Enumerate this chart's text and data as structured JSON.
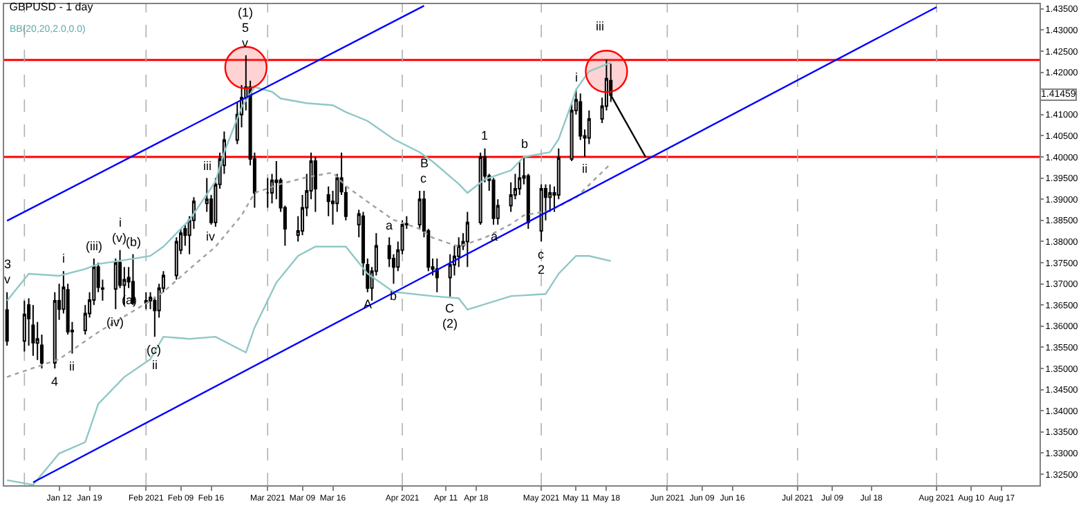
{
  "chart_data": {
    "type": "candlestick",
    "title": "GBPUSD - 1 day",
    "subtitle": "BB(20,20,2.0,0.0)",
    "x": [
      "2020-12-31",
      "2021-01-04",
      "2021-01-05",
      "2021-01-06",
      "2021-01-07",
      "2021-01-08",
      "2021-01-11",
      "2021-01-12",
      "2021-01-13",
      "2021-01-14",
      "2021-01-15",
      "2021-01-18",
      "2021-01-19",
      "2021-01-20",
      "2021-01-21",
      "2021-01-22",
      "2021-01-25",
      "2021-01-26",
      "2021-01-27",
      "2021-01-28",
      "2021-01-29",
      "2021-02-01",
      "2021-02-02",
      "2021-02-03",
      "2021-02-04",
      "2021-02-05",
      "2021-02-08",
      "2021-02-09",
      "2021-02-10",
      "2021-02-11",
      "2021-02-12",
      "2021-02-15",
      "2021-02-16",
      "2021-02-17",
      "2021-02-18",
      "2021-02-19",
      "2021-02-22",
      "2021-02-23",
      "2021-02-24",
      "2021-02-25",
      "2021-02-26",
      "2021-03-01",
      "2021-03-02",
      "2021-03-03",
      "2021-03-04",
      "2021-03-05",
      "2021-03-08",
      "2021-03-09",
      "2021-03-10",
      "2021-03-11",
      "2021-03-12",
      "2021-03-15",
      "2021-03-16",
      "2021-03-17",
      "2021-03-18",
      "2021-03-19",
      "2021-03-22",
      "2021-03-23",
      "2021-03-24",
      "2021-03-25",
      "2021-03-26",
      "2021-03-29",
      "2021-03-30",
      "2021-03-31",
      "2021-04-01",
      "2021-04-02",
      "2021-04-05",
      "2021-04-06",
      "2021-04-07",
      "2021-04-08",
      "2021-04-09",
      "2021-04-12",
      "2021-04-13",
      "2021-04-14",
      "2021-04-15",
      "2021-04-16",
      "2021-04-19",
      "2021-04-20",
      "2021-04-21",
      "2021-04-22",
      "2021-04-23",
      "2021-04-26",
      "2021-04-27",
      "2021-04-28",
      "2021-04-29",
      "2021-04-30",
      "2021-05-03",
      "2021-05-04",
      "2021-05-05",
      "2021-05-06",
      "2021-05-07",
      "2021-05-10",
      "2021-05-11",
      "2021-05-12",
      "2021-05-13",
      "2021-05-14",
      "2021-05-17",
      "2021-05-18",
      "2021-05-19"
    ],
    "ohlc": [
      [
        1.3638,
        1.368,
        1.3554,
        1.3565
      ],
      [
        1.3565,
        1.366,
        1.354,
        1.3628
      ],
      [
        1.365,
        1.3666,
        1.3554,
        1.3618
      ],
      [
        1.3602,
        1.365,
        1.353,
        1.3561
      ],
      [
        1.356,
        1.361,
        1.352,
        1.357
      ],
      [
        1.3555,
        1.358,
        1.35,
        1.3513
      ],
      [
        1.3513,
        1.368,
        1.35,
        1.366
      ],
      [
        1.366,
        1.37,
        1.3615,
        1.364
      ],
      [
        1.364,
        1.373,
        1.363,
        1.3692
      ],
      [
        1.3686,
        1.37,
        1.358,
        1.3587
      ],
      [
        1.3587,
        1.361,
        1.3535,
        1.359
      ],
      [
        1.359,
        1.365,
        1.358,
        1.363
      ],
      [
        1.363,
        1.368,
        1.362,
        1.3662
      ],
      [
        1.3662,
        1.376,
        1.365,
        1.374
      ],
      [
        1.374,
        1.375,
        1.368,
        1.3692
      ],
      [
        1.369,
        1.371,
        1.366,
        1.3688
      ],
      [
        1.3688,
        1.376,
        1.364,
        1.375
      ],
      [
        1.375,
        1.378,
        1.369,
        1.3697
      ],
      [
        1.3697,
        1.374,
        1.365,
        1.371
      ],
      [
        1.3715,
        1.374,
        1.369,
        1.3705
      ],
      [
        1.3705,
        1.377,
        1.365,
        1.3655
      ],
      [
        1.3655,
        1.368,
        1.364,
        1.366
      ],
      [
        1.366,
        1.368,
        1.364,
        1.3668
      ],
      [
        1.366,
        1.367,
        1.3575,
        1.3637
      ],
      [
        1.3637,
        1.37,
        1.362,
        1.369
      ],
      [
        1.369,
        1.373,
        1.368,
        1.372
      ],
      [
        1.372,
        1.381,
        1.371,
        1.38
      ],
      [
        1.378,
        1.383,
        1.377,
        1.382
      ],
      [
        1.383,
        1.384,
        1.379,
        1.3815
      ],
      [
        1.3815,
        1.386,
        1.377,
        1.385
      ],
      [
        1.385,
        1.3905,
        1.383,
        1.3895
      ],
      [
        1.389,
        1.395,
        1.387,
        1.39
      ],
      [
        1.39,
        1.391,
        1.384,
        1.3845
      ],
      [
        1.3845,
        1.395,
        1.3835,
        1.3935
      ],
      [
        1.3935,
        1.401,
        1.3925,
        1.3995
      ],
      [
        1.398,
        1.406,
        1.396,
        1.404
      ],
      [
        1.404,
        1.413,
        1.403,
        1.41
      ],
      [
        1.41,
        1.417,
        1.407,
        1.414
      ],
      [
        1.414,
        1.424,
        1.411,
        1.4165
      ],
      [
        1.4165,
        1.418,
        1.398,
        1.3995
      ],
      [
        1.3995,
        1.401,
        1.388,
        1.3915
      ],
      [
        1.3915,
        1.395,
        1.388,
        1.3915
      ],
      [
        1.3915,
        1.396,
        1.389,
        1.3945
      ],
      [
        1.3945,
        1.399,
        1.39,
        1.394
      ],
      [
        1.3945,
        1.395,
        1.387,
        1.388
      ],
      [
        1.388,
        1.3885,
        1.379,
        1.383
      ],
      [
        1.3815,
        1.386,
        1.38,
        1.3825
      ],
      [
        1.3825,
        1.391,
        1.3815,
        1.388
      ],
      [
        1.388,
        1.396,
        1.386,
        1.392
      ],
      [
        1.392,
        1.401,
        1.39,
        1.399
      ],
      [
        1.399,
        1.4,
        1.387,
        1.3925
      ],
      [
        1.391,
        1.393,
        1.386,
        1.3895
      ],
      [
        1.3895,
        1.392,
        1.384,
        1.389
      ],
      [
        1.389,
        1.396,
        1.387,
        1.395
      ],
      [
        1.395,
        1.401,
        1.391,
        1.3918
      ],
      [
        1.3915,
        1.393,
        1.385,
        1.386
      ],
      [
        1.384,
        1.3875,
        1.381,
        1.3865
      ],
      [
        1.386,
        1.387,
        1.372,
        1.375
      ],
      [
        1.3745,
        1.376,
        1.368,
        1.369
      ],
      [
        1.369,
        1.374,
        1.366,
        1.373
      ],
      [
        1.373,
        1.382,
        1.372,
        1.379
      ],
      [
        1.379,
        1.381,
        1.374,
        1.376
      ],
      [
        1.376,
        1.377,
        1.37,
        1.374
      ],
      [
        1.374,
        1.38,
        1.373,
        1.378
      ],
      [
        1.378,
        1.385,
        1.377,
        1.384
      ],
      [
        1.384,
        1.386,
        1.383,
        1.3842
      ],
      [
        1.384,
        1.392,
        1.383,
        1.39
      ],
      [
        1.39,
        1.392,
        1.381,
        1.3825
      ],
      [
        1.3825,
        1.383,
        1.373,
        1.374
      ],
      [
        1.374,
        1.376,
        1.372,
        1.3735
      ],
      [
        1.3735,
        1.376,
        1.368,
        1.3715
      ],
      [
        1.3715,
        1.377,
        1.367,
        1.3745
      ],
      [
        1.3745,
        1.379,
        1.372,
        1.3765
      ],
      [
        1.3765,
        1.381,
        1.374,
        1.379
      ],
      [
        1.379,
        1.382,
        1.378,
        1.38
      ],
      [
        1.38,
        1.387,
        1.374,
        1.3845
      ],
      [
        1.3845,
        1.401,
        1.384,
        1.4
      ],
      [
        1.4,
        1.402,
        1.394,
        1.3955
      ],
      [
        1.3955,
        1.396,
        1.392,
        1.3945
      ],
      [
        1.3945,
        1.395,
        1.384,
        1.3855
      ],
      [
        1.3855,
        1.39,
        1.384,
        1.3885
      ],
      [
        1.3885,
        1.394,
        1.387,
        1.391
      ],
      [
        1.391,
        1.396,
        1.39,
        1.3925
      ],
      [
        1.3925,
        1.399,
        1.391,
        1.395
      ],
      [
        1.395,
        1.4,
        1.3935,
        1.3955
      ],
      [
        1.3955,
        1.396,
        1.383,
        1.3845
      ],
      [
        1.3825,
        1.3935,
        1.38,
        1.3925
      ],
      [
        1.3925,
        1.3935,
        1.385,
        1.3905
      ],
      [
        1.3905,
        1.3935,
        1.387,
        1.3915
      ],
      [
        1.3915,
        1.393,
        1.387,
        1.391
      ],
      [
        1.391,
        1.402,
        1.39,
        1.3998
      ],
      [
        1.3995,
        1.4125,
        1.399,
        1.411
      ],
      [
        1.411,
        1.416,
        1.41,
        1.4135
      ],
      [
        1.413,
        1.415,
        1.404,
        1.405
      ],
      [
        1.405,
        1.4065,
        1.4,
        1.4045
      ],
      [
        1.4045,
        1.411,
        1.403,
        1.409
      ],
      [
        1.409,
        1.414,
        1.408,
        1.412
      ],
      [
        1.412,
        1.423,
        1.411,
        1.4185
      ],
      [
        1.418,
        1.422,
        1.413,
        1.4146
      ]
    ],
    "series": [
      {
        "type": "line",
        "color": "#8fc7c7",
        "x": [
          "2020-12-31",
          "2021-01-05",
          "2021-01-12",
          "2021-01-18",
          "2021-01-21",
          "2021-01-27",
          "2021-02-02",
          "2021-02-05",
          "2021-02-11",
          "2021-02-17",
          "2021-02-19",
          "2021-02-23",
          "2021-02-26",
          "2021-03-02",
          "2021-03-04",
          "2021-03-10",
          "2021-03-16",
          "2021-03-19",
          "2021-03-24",
          "2021-03-30",
          "2021-04-05",
          "2021-04-08",
          "2021-04-14",
          "2021-04-16",
          "2021-04-20",
          "2021-04-26",
          "2021-04-29",
          "2021-05-05",
          "2021-05-07",
          "2021-05-10",
          "2021-05-11",
          "2021-05-14",
          "2021-05-19"
        ],
        "values": [
          1.366,
          1.3724,
          1.3719,
          1.3735,
          1.3747,
          1.3756,
          1.3766,
          1.3788,
          1.3851,
          1.3942,
          1.4011,
          1.4117,
          1.4165,
          1.4154,
          1.4138,
          1.4127,
          1.4122,
          1.4106,
          1.4085,
          1.4042,
          1.4011,
          1.3989,
          1.3936,
          1.3915,
          1.3947,
          1.3968,
          1.4,
          1.4011,
          1.4042,
          1.4127,
          1.4159,
          1.4202,
          1.4223
        ]
      },
      {
        "type": "line",
        "color": "#a0a0a0",
        "line_style": "dotted",
        "x": [
          "2020-12-31",
          "2021-01-12",
          "2021-01-21",
          "2021-02-02",
          "2021-02-05",
          "2021-02-11",
          "2021-02-17",
          "2021-02-23",
          "2021-02-26",
          "2021-03-04",
          "2021-03-10",
          "2021-03-16",
          "2021-03-19",
          "2021-03-24",
          "2021-03-30",
          "2021-04-05",
          "2021-04-08",
          "2021-04-14",
          "2021-04-20",
          "2021-04-26",
          "2021-04-29",
          "2021-05-05",
          "2021-05-11",
          "2021-05-19"
        ],
        "values": [
          1.348,
          1.3522,
          1.3586,
          1.366,
          1.3681,
          1.3735,
          1.3788,
          1.3862,
          1.3915,
          1.3936,
          1.3952,
          1.3963,
          1.3931,
          1.3894,
          1.3851,
          1.383,
          1.3809,
          1.3788,
          1.3809,
          1.3841,
          1.3862,
          1.3873,
          1.3904,
          1.3984
        ]
      },
      {
        "type": "line",
        "color": "#8fc7c7",
        "x": [
          "2020-12-31",
          "2021-01-06",
          "2021-01-12",
          "2021-01-18",
          "2021-01-21",
          "2021-01-27",
          "2021-02-02",
          "2021-02-05",
          "2021-02-11",
          "2021-02-17",
          "2021-02-23",
          "2021-02-24",
          "2021-02-26",
          "2021-03-03",
          "2021-03-08",
          "2021-03-12",
          "2021-03-19",
          "2021-03-24",
          "2021-03-30",
          "2021-04-08",
          "2021-04-14",
          "2021-04-16",
          "2021-04-26",
          "2021-05-04",
          "2021-05-07",
          "2021-05-11",
          "2021-05-14",
          "2021-05-19"
        ],
        "values": [
          1.3236,
          1.3225,
          1.3299,
          1.3326,
          1.3416,
          1.348,
          1.3522,
          1.3575,
          1.357,
          1.3575,
          1.3543,
          1.3538,
          1.3597,
          1.3703,
          1.3766,
          1.3788,
          1.3788,
          1.3724,
          1.3681,
          1.3671,
          1.3666,
          1.3639,
          1.3671,
          1.3676,
          1.3724,
          1.3766,
          1.3766,
          1.3754
        ]
      },
      {
        "type": "line",
        "color": "#0000ff",
        "x": [
          "2020-12-31",
          "2021-04-06"
        ],
        "values": [
          1.3849,
          1.4357
        ]
      },
      {
        "type": "line",
        "color": "#0000ff",
        "x": [
          "2021-01-06",
          "2021-08-02"
        ],
        "values": [
          1.3231,
          1.4354
        ]
      },
      {
        "type": "line",
        "color": "#000000",
        "x": [
          "2021-05-19",
          "2021-05-27"
        ],
        "values": [
          1.4146,
          1.4
        ]
      },
      {
        "type": "scatter",
        "color": "#ff0000",
        "marker": "circle",
        "x": [
          "2021-02-24",
          "2021-05-18"
        ],
        "values": [
          1.4211,
          1.4202
        ]
      }
    ],
    "ref_lines": [
      {
        "axis": "y",
        "value": 1.4229,
        "color": "#ff0000"
      },
      {
        "axis": "y",
        "value": 1.4,
        "color": "#ff0000"
      },
      {
        "axis": "x",
        "value": "2021-01-04",
        "color": "#b0b0b0",
        "line_style": "dashed"
      },
      {
        "axis": "x",
        "value": "2021-02-01",
        "color": "#b0b0b0",
        "line_style": "dashed"
      },
      {
        "axis": "x",
        "value": "2021-03-01",
        "color": "#b0b0b0",
        "line_style": "dashed"
      },
      {
        "axis": "x",
        "value": "2021-04-01",
        "color": "#b0b0b0",
        "line_style": "dashed"
      },
      {
        "axis": "x",
        "value": "2021-05-03",
        "color": "#b0b0b0",
        "line_style": "dashed"
      },
      {
        "axis": "x",
        "value": "2021-06-01",
        "color": "#b0b0b0",
        "line_style": "dashed"
      },
      {
        "axis": "x",
        "value": "2021-07-01",
        "color": "#b0b0b0",
        "line_style": "dashed"
      },
      {
        "axis": "x",
        "value": "2021-08-02",
        "color": "#b0b0b0",
        "line_style": "dashed"
      }
    ],
    "annotations": [
      {
        "text": "v",
        "x": "2020-12-31",
        "y": 1.368
      },
      {
        "text": "3",
        "x": "2020-12-31",
        "y": 1.368
      },
      {
        "text": "4",
        "x": "2021-01-11",
        "y": 1.35
      },
      {
        "text": "i",
        "x": "2021-01-13",
        "y": 1.373
      },
      {
        "text": "ii",
        "x": "2021-01-15",
        "y": 1.3535
      },
      {
        "text": "(iii)",
        "x": "2021-01-20",
        "y": 1.376
      },
      {
        "text": "(iv)",
        "x": "2021-01-25",
        "y": 1.364
      },
      {
        "text": "(v)",
        "x": "2021-01-26",
        "y": 1.378
      },
      {
        "text": "i",
        "x": "2021-01-26",
        "y": 1.378
      },
      {
        "text": "(a)",
        "x": "2021-01-28",
        "y": 1.369
      },
      {
        "text": "(b)",
        "x": "2021-01-29",
        "y": 1.377
      },
      {
        "text": "(c)",
        "x": "2021-02-03",
        "y": 1.3575
      },
      {
        "text": "ii",
        "x": "2021-02-03",
        "y": 1.3575
      },
      {
        "text": "iii",
        "x": "2021-02-15",
        "y": 1.395
      },
      {
        "text": "iv",
        "x": "2021-02-16",
        "y": 1.384
      },
      {
        "text": "v",
        "x": "2021-02-24",
        "y": 1.424
      },
      {
        "text": "5",
        "x": "2021-02-24",
        "y": 1.424
      },
      {
        "text": "(1)",
        "x": "2021-02-24",
        "y": 1.424
      },
      {
        "text": "A",
        "x": "2021-03-24",
        "y": 1.368
      },
      {
        "text": "a",
        "x": "2021-03-29",
        "y": 1.381
      },
      {
        "text": "b",
        "x": "2021-03-30",
        "y": 1.37
      },
      {
        "text": "c",
        "x": "2021-04-06",
        "y": 1.392
      },
      {
        "text": "B",
        "x": "2021-04-06",
        "y": 1.392
      },
      {
        "text": "C",
        "x": "2021-04-12",
        "y": 1.367
      },
      {
        "text": "(2)",
        "x": "2021-04-12",
        "y": 1.367
      },
      {
        "text": "1",
        "x": "2021-04-20",
        "y": 1.402
      },
      {
        "text": "a",
        "x": "2021-04-22",
        "y": 1.384
      },
      {
        "text": "b",
        "x": "2021-04-29",
        "y": 1.4
      },
      {
        "text": "c",
        "x": "2021-05-03",
        "y": 1.38
      },
      {
        "text": "2",
        "x": "2021-05-03",
        "y": 1.38
      },
      {
        "text": "i",
        "x": "2021-05-11",
        "y": 1.416
      },
      {
        "text": "ii",
        "x": "2021-05-13",
        "y": 1.4
      },
      "iii",
      {
        "text": "1.41459",
        "y": 1.41459
      }
    ],
    "xlim": [
      "2020-12-30T08:00",
      "2021-08-25T17:00"
    ],
    "xticks": [
      {
        "value": "2021-01-12",
        "label": "Jan 12"
      },
      {
        "value": "2021-01-19",
        "label": "Jan 19"
      },
      {
        "value": "2021-02-01",
        "label": "Feb 2021"
      },
      {
        "value": "2021-02-09",
        "label": "Feb 09"
      },
      {
        "value": "2021-02-16",
        "label": "Feb 16"
      },
      {
        "value": "2021-03-01",
        "label": "Mar 2021"
      },
      {
        "value": "2021-03-09",
        "label": "Mar 09"
      },
      {
        "value": "2021-03-16",
        "label": "Mar 16"
      },
      {
        "value": "2021-04-01",
        "label": "Apr 2021"
      },
      {
        "value": "2021-04-11",
        "label": "Apr 11"
      },
      {
        "value": "2021-04-18",
        "label": "Apr 18"
      },
      {
        "value": "2021-05-03",
        "label": "May 2021"
      },
      {
        "value": "2021-05-11",
        "label": "May 11"
      },
      {
        "value": "2021-05-18",
        "label": "May 18"
      },
      {
        "value": "2021-06-01",
        "label": "Jun 2021"
      },
      {
        "value": "2021-06-09",
        "label": "Jun 09"
      },
      {
        "value": "2021-06-16",
        "label": "Jun 16"
      },
      {
        "value": "2021-07-01",
        "label": "Jul 2021"
      },
      {
        "value": "2021-07-09",
        "label": "Jul 09"
      },
      {
        "value": "2021-07-18",
        "label": "Jul 18"
      },
      {
        "value": "2021-08-02",
        "label": "Aug 2021"
      },
      {
        "value": "2021-08-10",
        "label": "Aug 10"
      },
      {
        "value": "2021-08-17",
        "label": "Aug 17"
      }
    ],
    "ylim": [
      1.3224,
      1.4361
    ],
    "yticks": [
      {
        "value": 1.325,
        "label": "1.32500"
      },
      {
        "value": 1.33,
        "label": "1.33000"
      },
      {
        "value": 1.335,
        "label": "1.33500"
      },
      {
        "value": 1.34,
        "label": "1.34000"
      },
      {
        "value": 1.345,
        "label": "1.34500"
      },
      {
        "value": 1.35,
        "label": "1.35000"
      },
      {
        "value": 1.355,
        "label": "1.35500"
      },
      {
        "value": 1.36,
        "label": "1.36000"
      },
      {
        "value": 1.365,
        "label": "1.36500"
      },
      {
        "value": 1.37,
        "label": "1.37000"
      },
      {
        "value": 1.375,
        "label": "1.37500"
      },
      {
        "value": 1.38,
        "label": "1.38000"
      },
      {
        "value": 1.385,
        "label": "1.38500"
      },
      {
        "value": 1.39,
        "label": "1.39000"
      },
      {
        "value": 1.395,
        "label": "1.39500"
      },
      {
        "value": 1.4,
        "label": "1.40000"
      },
      {
        "value": 1.405,
        "label": "1.40500"
      },
      {
        "value": 1.41,
        "label": "1.41000"
      },
      {
        "value": 1.42,
        "label": "1.42000"
      },
      {
        "value": 1.425,
        "label": "1.42500"
      },
      {
        "value": 1.43,
        "label": "1.43000"
      },
      {
        "value": 1.435,
        "label": "1.43500"
      }
    ]
  }
}
